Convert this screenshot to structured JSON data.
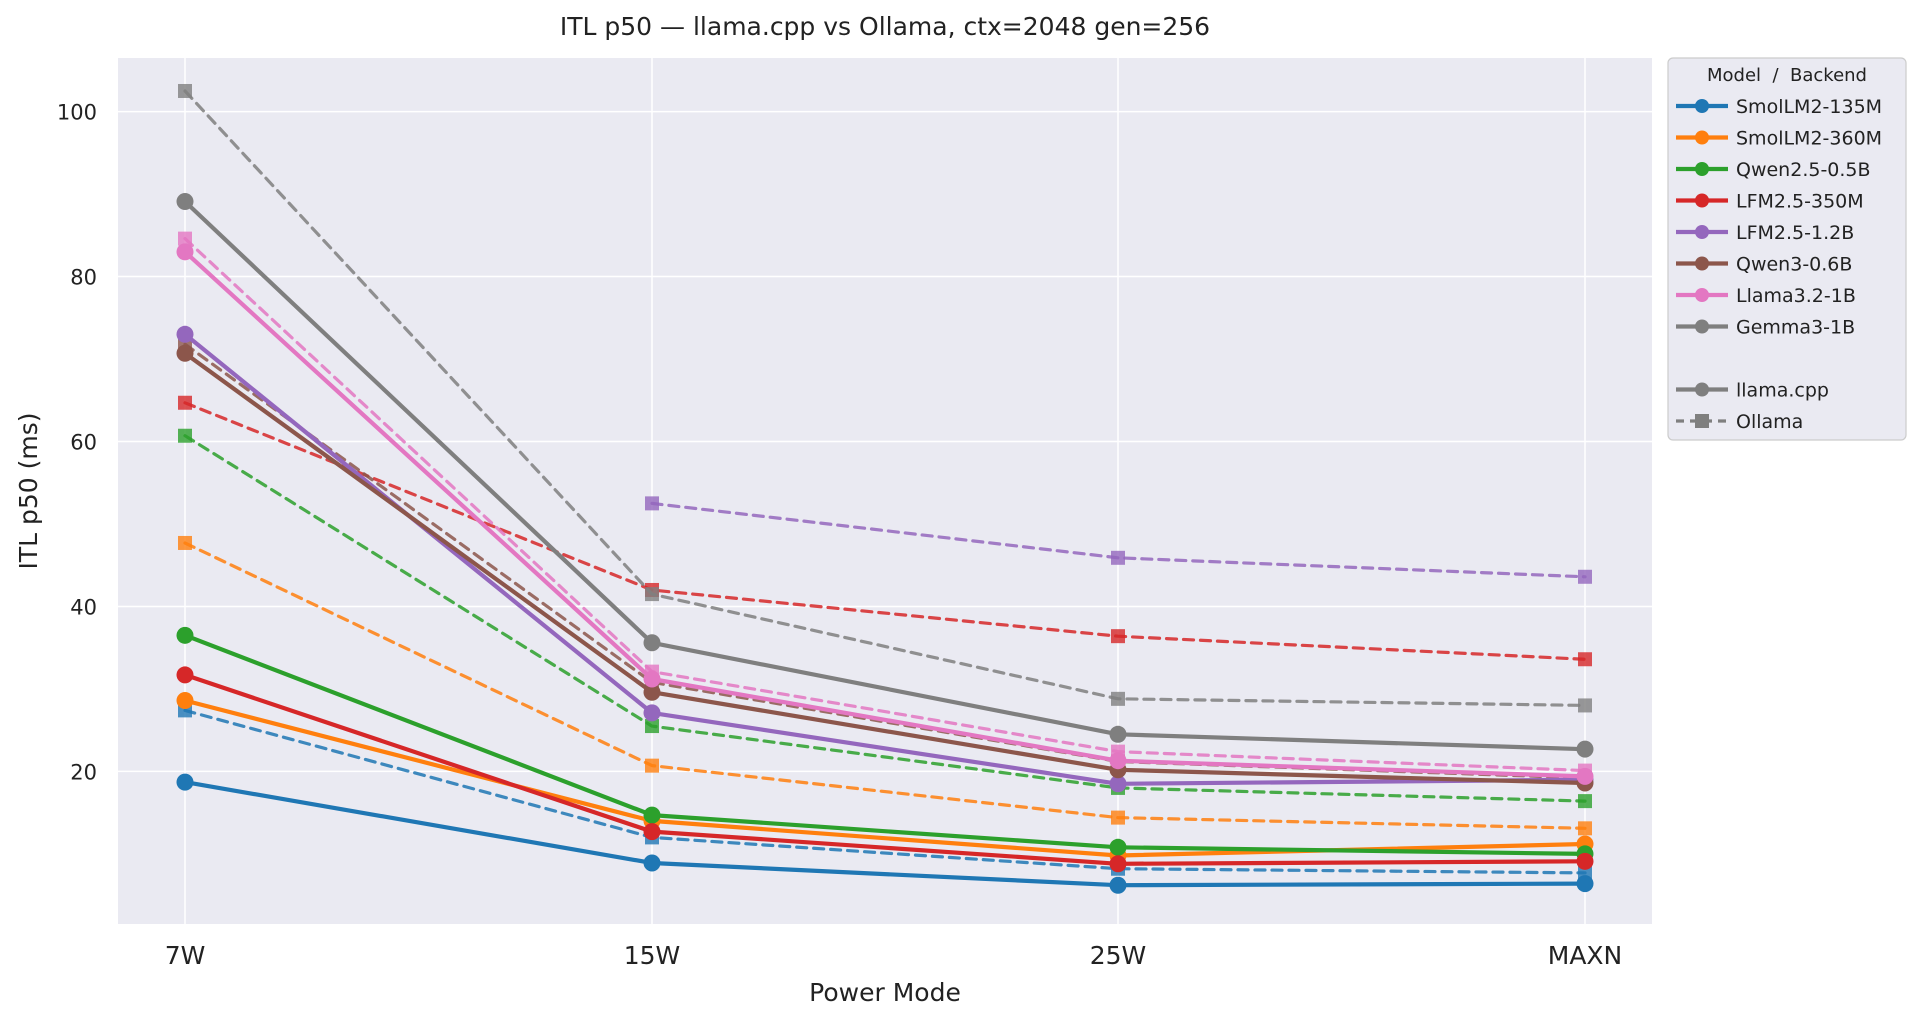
{
  "chart_data": {
    "type": "line",
    "title": "ITL p50 — llama.cpp vs Ollama, ctx=2048 gen=256",
    "xlabel": "Power Mode",
    "ylabel": "ITL p50 (ms)",
    "categories": [
      "7W",
      "15W",
      "25W",
      "MAXN"
    ],
    "ylim": [
      1.5,
      106.5
    ],
    "yticks": [
      20,
      40,
      60,
      80,
      100
    ],
    "grid": true,
    "legend": {
      "title": "Model  /  Backend",
      "placement": "outside upper-right",
      "backend_entries": [
        {
          "name": "llama.cpp",
          "style": "solid",
          "marker": "circle"
        },
        {
          "name": "Ollama",
          "style": "dashed",
          "marker": "square"
        }
      ]
    },
    "series": [
      {
        "name": "SmolLM2-135M",
        "color": "#1f77b4",
        "llama_cpp": [
          18.7,
          8.9,
          6.2,
          6.4
        ],
        "ollama": [
          27.4,
          12.0,
          8.2,
          7.7
        ]
      },
      {
        "name": "SmolLM2-360M",
        "color": "#ff7f0e",
        "llama_cpp": [
          28.6,
          14.0,
          9.8,
          11.2
        ],
        "ollama": [
          47.7,
          20.7,
          14.4,
          13.1
        ]
      },
      {
        "name": "Qwen2.5-0.5B",
        "color": "#2ca02c",
        "llama_cpp": [
          36.5,
          14.7,
          10.8,
          10.0
        ],
        "ollama": [
          60.7,
          25.5,
          18.0,
          16.4
        ]
      },
      {
        "name": "LFM2.5-350M",
        "color": "#d62728",
        "llama_cpp": [
          31.7,
          12.7,
          8.8,
          9.1
        ],
        "ollama": [
          64.7,
          42.0,
          36.4,
          33.6
        ]
      },
      {
        "name": "LFM2.5-1.2B",
        "color": "#9467bd",
        "llama_cpp": [
          73.0,
          27.1,
          18.5,
          19.0
        ],
        "ollama": [
          null,
          52.5,
          45.9,
          43.6
        ]
      },
      {
        "name": "Qwen3-0.6B",
        "color": "#8c564b",
        "llama_cpp": [
          70.7,
          29.6,
          20.2,
          18.6
        ],
        "ollama": [
          71.8,
          30.8,
          21.2,
          19.2
        ]
      },
      {
        "name": "Llama3.2-1B",
        "color": "#e377c2",
        "llama_cpp": [
          83.0,
          31.2,
          21.3,
          19.4
        ],
        "ollama": [
          84.6,
          32.1,
          22.4,
          20.1
        ]
      },
      {
        "name": "Gemma3-1B",
        "color": "#7f7f7f",
        "llama_cpp": [
          89.1,
          35.6,
          24.5,
          22.7
        ],
        "ollama": [
          102.5,
          41.5,
          28.8,
          28.0
        ]
      }
    ]
  }
}
